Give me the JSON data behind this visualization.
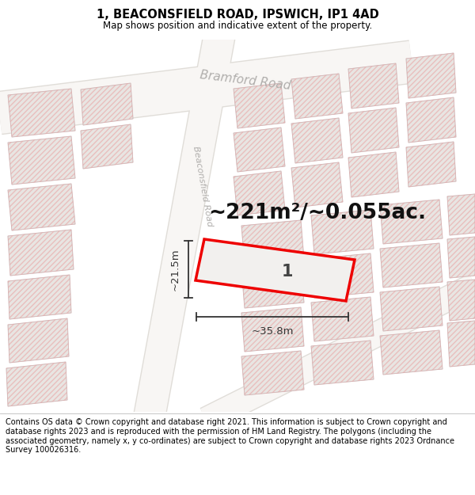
{
  "title": "1, BEACONSFIELD ROAD, IPSWICH, IP1 4AD",
  "subtitle": "Map shows position and indicative extent of the property.",
  "footer": "Contains OS data © Crown copyright and database right 2021. This information is subject to Crown copyright and database rights 2023 and is reproduced with the permission of HM Land Registry. The polygons (including the associated geometry, namely x, y co-ordinates) are subject to Crown copyright and database rights 2023 Ordnance Survey 100026316.",
  "area_label": "~221m²/~0.055ac.",
  "width_label": "~35.8m",
  "height_label": "~21.5m",
  "number_label": "1",
  "bg_color": "#f2f0ee",
  "hatch_color": "#e8a0a0",
  "red_outline": "#ee0000",
  "road_fill": "#f8f6f4",
  "road_edge": "#e0ddd8",
  "building_fill": "#e8e5e2",
  "building_edge": "#cccccc",
  "title_fontsize": 10.5,
  "subtitle_fontsize": 8.5,
  "footer_fontsize": 7.0,
  "area_fontsize": 19,
  "dim_fontsize": 9.5,
  "num_fontsize": 15,
  "road_label_color": "#b0aeac",
  "dim_color": "#333333",
  "title_color": "#000000"
}
